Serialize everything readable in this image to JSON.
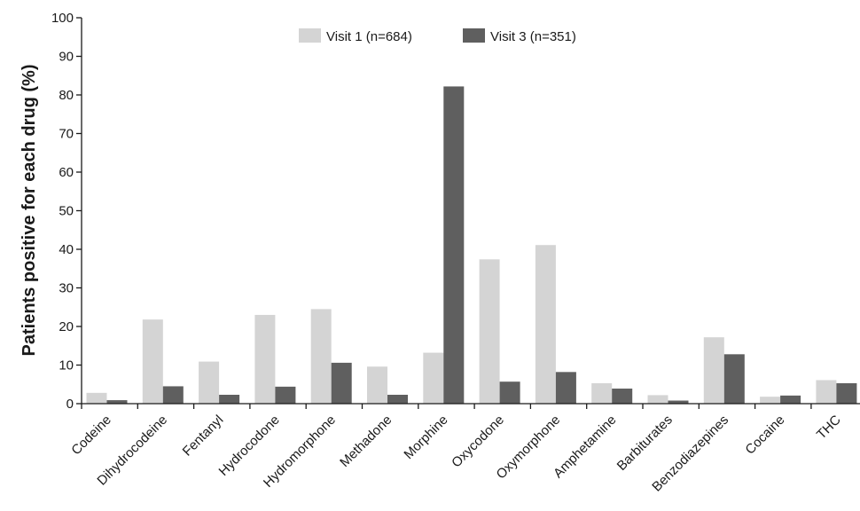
{
  "chart_data": {
    "type": "bar",
    "ylabel": "Patients positive for each drug (%)",
    "xlabel": "",
    "ylim": [
      0,
      100
    ],
    "yticks": [
      0,
      10,
      20,
      30,
      40,
      50,
      60,
      70,
      80,
      90,
      100
    ],
    "grid": false,
    "legend_position": "top-center",
    "categories": [
      "Codeine",
      "Dihydrocodeine",
      "Fentanyl",
      "Hydrocodone",
      "Hydromorphone",
      "Methadone",
      "Morphine",
      "Oxycodone",
      "Oxymorphone",
      "Amphetamine",
      "Barbiturates",
      "Benzodiazepines",
      "Cocaine",
      "THC"
    ],
    "series": [
      {
        "name": "Visit 1 (n=684)",
        "color": "#d4d4d4",
        "values": [
          2.8,
          21.8,
          10.9,
          23.0,
          24.5,
          9.6,
          13.2,
          37.4,
          41.1,
          5.3,
          2.2,
          17.2,
          1.8,
          6.1
        ]
      },
      {
        "name": "Visit 3 (n=351)",
        "color": "#5f5f5f",
        "values": [
          0.9,
          4.5,
          2.3,
          4.4,
          10.6,
          2.3,
          82.2,
          5.7,
          8.2,
          3.9,
          0.8,
          12.8,
          2.1,
          5.3
        ]
      }
    ]
  }
}
